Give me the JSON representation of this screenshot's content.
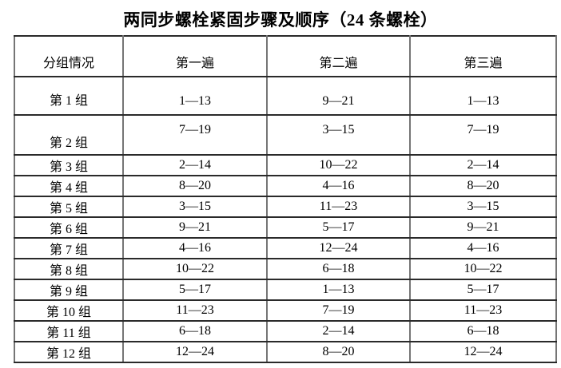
{
  "title": "两同步螺栓紧固步骤及顺序（24 条螺栓）",
  "table": {
    "columns": [
      "分组情况",
      "第一遍",
      "第二遍",
      "第三遍"
    ],
    "rows": [
      {
        "group": "第 1 组",
        "pass1": "1—13",
        "pass2": "9—21",
        "pass3": "1—13"
      },
      {
        "group": "第 2 组",
        "pass1": "7—19",
        "pass2": "3—15",
        "pass3": "7—19"
      },
      {
        "group": "第 3 组",
        "pass1": "2—14",
        "pass2": "10—22",
        "pass3": "2—14"
      },
      {
        "group": "第 4 组",
        "pass1": "8—20",
        "pass2": "4—16",
        "pass3": "8—20"
      },
      {
        "group": "第 5 组",
        "pass1": "3—15",
        "pass2": "11—23",
        "pass3": "3—15"
      },
      {
        "group": "第 6 组",
        "pass1": "9—21",
        "pass2": "5—17",
        "pass3": "9—21"
      },
      {
        "group": "第 7 组",
        "pass1": "4—16",
        "pass2": "12—24",
        "pass3": "4—16"
      },
      {
        "group": "第 8 组",
        "pass1": "10—22",
        "pass2": "6—18",
        "pass3": "10—22"
      },
      {
        "group": "第 9 组",
        "pass1": "5—17",
        "pass2": "1—13",
        "pass3": "5—17"
      },
      {
        "group": "第 10 组",
        "pass1": "11—23",
        "pass2": "7—19",
        "pass3": "11—23"
      },
      {
        "group": "第 11 组",
        "pass1": "6—18",
        "pass2": "2—14",
        "pass3": "6—18"
      },
      {
        "group": "第 12 组",
        "pass1": "12—24",
        "pass2": "8—20",
        "pass3": "12—24"
      }
    ]
  },
  "colors": {
    "background": "#ffffff",
    "text": "#000000",
    "border_horizontal": "#2a2a2a",
    "border_vertical": "#757575"
  }
}
